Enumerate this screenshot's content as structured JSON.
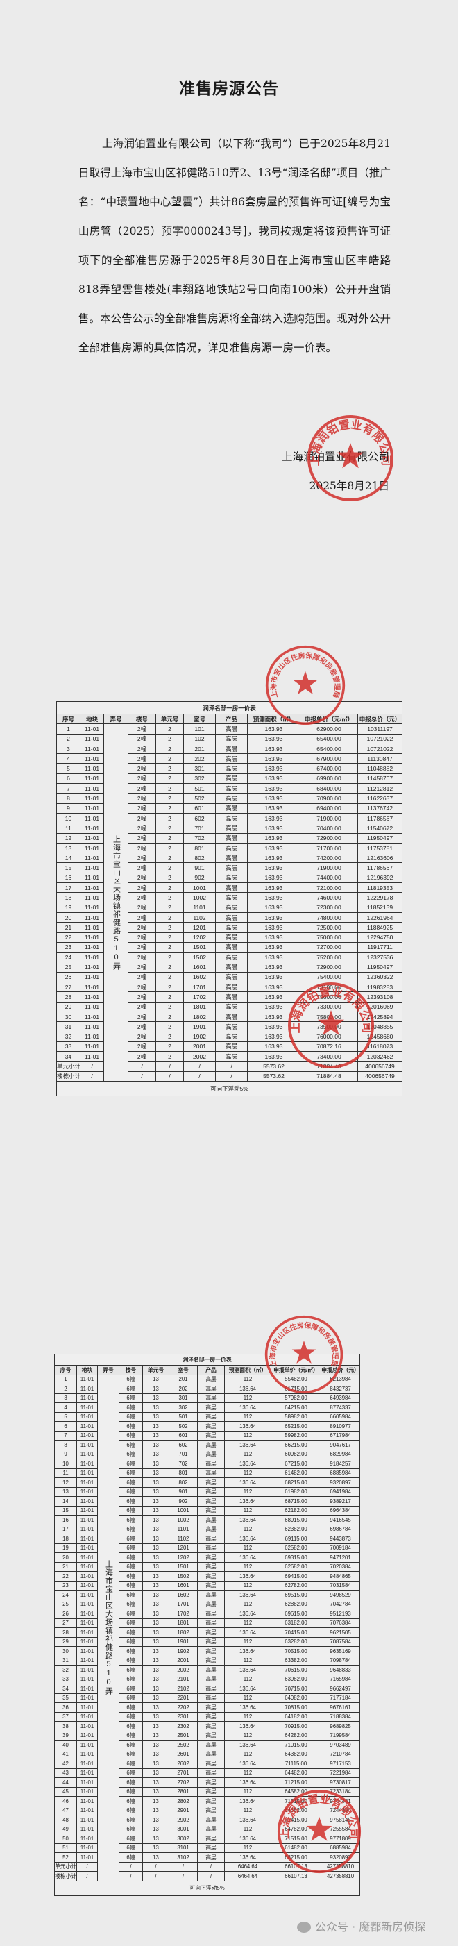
{
  "notice": {
    "title": "准售房源公告",
    "paragraph": "上海润铂置业有限公司（以下称“我司”）已于2025年8月21日取得上海市宝山区祁健路510弄2、13号“润泽名邸”项目（推广名：“中環置地中心望雲”）共计86套房屋的预售许可证[编号为宝山房管（2025）预字0000243号]，我司按规定将该预售许可证项下的全部准售房源于2025年8月30日在上海市宝山区丰皓路818弄望雲售楼处(丰翔路地铁站2号口向南100米）公开开盘销售。本公告公示的全部准售房源将全部纳入选购范围。现对外公开全部准售房源的具体情况，详见准售房源一房一价表。",
    "signature_company": "上海润铂置业有限公司",
    "signature_date": "2025年8月21日"
  },
  "stamps": {
    "company_seal": "上海润铂置业有限公司",
    "authority_seal": "上海市宝山区住房保障和房屋管理局",
    "color": "#d2302c"
  },
  "table_headers": [
    "序号",
    "地块",
    "弄号",
    "楼号",
    "单元号",
    "室号",
    "产品",
    "预测面积（㎡）",
    "申报单价（元/㎡）",
    "申报总价（元）"
  ],
  "lane_text": "上海市宝山区大场镇祁健路510弄",
  "tables": [
    {
      "title": "润泽名邸一房一价表",
      "rows": [
        [
          "1",
          "11-01",
          "2幢",
          "2",
          "101",
          "高层",
          "163.93",
          "62900.00",
          "10311197"
        ],
        [
          "2",
          "11-01",
          "2幢",
          "2",
          "102",
          "高层",
          "163.93",
          "65400.00",
          "10721022"
        ],
        [
          "3",
          "11-01",
          "2幢",
          "2",
          "201",
          "高层",
          "163.93",
          "65400.00",
          "10721022"
        ],
        [
          "4",
          "11-01",
          "2幢",
          "2",
          "202",
          "高层",
          "163.93",
          "67900.00",
          "11130847"
        ],
        [
          "5",
          "11-01",
          "2幢",
          "2",
          "301",
          "高层",
          "163.93",
          "67400.00",
          "11048882"
        ],
        [
          "6",
          "11-01",
          "2幢",
          "2",
          "302",
          "高层",
          "163.93",
          "69900.00",
          "11458707"
        ],
        [
          "7",
          "11-01",
          "2幢",
          "2",
          "501",
          "高层",
          "163.93",
          "68400.00",
          "11212812"
        ],
        [
          "8",
          "11-01",
          "2幢",
          "2",
          "502",
          "高层",
          "163.93",
          "70900.00",
          "11622637"
        ],
        [
          "9",
          "11-01",
          "2幢",
          "2",
          "601",
          "高层",
          "163.93",
          "69400.00",
          "11376742"
        ],
        [
          "10",
          "11-01",
          "2幢",
          "2",
          "602",
          "高层",
          "163.93",
          "71900.00",
          "11786567"
        ],
        [
          "11",
          "11-01",
          "2幢",
          "2",
          "701",
          "高层",
          "163.93",
          "70400.00",
          "11540672"
        ],
        [
          "12",
          "11-01",
          "2幢",
          "2",
          "702",
          "高层",
          "163.93",
          "72900.00",
          "11950497"
        ],
        [
          "13",
          "11-01",
          "2幢",
          "2",
          "801",
          "高层",
          "163.93",
          "71700.00",
          "11753781"
        ],
        [
          "14",
          "11-01",
          "2幢",
          "2",
          "802",
          "高层",
          "163.93",
          "74200.00",
          "12163606"
        ],
        [
          "15",
          "11-01",
          "2幢",
          "2",
          "901",
          "高层",
          "163.93",
          "71900.00",
          "11786567"
        ],
        [
          "16",
          "11-01",
          "2幢",
          "2",
          "902",
          "高层",
          "163.93",
          "74400.00",
          "12196392"
        ],
        [
          "17",
          "11-01",
          "2幢",
          "2",
          "1001",
          "高层",
          "163.93",
          "72100.00",
          "11819353"
        ],
        [
          "18",
          "11-01",
          "2幢",
          "2",
          "1002",
          "高层",
          "163.93",
          "74600.00",
          "12229178"
        ],
        [
          "19",
          "11-01",
          "2幢",
          "2",
          "1101",
          "高层",
          "163.93",
          "72300.00",
          "11852139"
        ],
        [
          "20",
          "11-01",
          "2幢",
          "2",
          "1102",
          "高层",
          "163.93",
          "74800.00",
          "12261964"
        ],
        [
          "21",
          "11-01",
          "2幢",
          "2",
          "1201",
          "高层",
          "163.93",
          "72500.00",
          "11884925"
        ],
        [
          "22",
          "11-01",
          "2幢",
          "2",
          "1202",
          "高层",
          "163.93",
          "75000.00",
          "12294750"
        ],
        [
          "23",
          "11-01",
          "2幢",
          "2",
          "1501",
          "高层",
          "163.93",
          "72700.00",
          "11917711"
        ],
        [
          "24",
          "11-01",
          "2幢",
          "2",
          "1502",
          "高层",
          "163.93",
          "75200.00",
          "12327536"
        ],
        [
          "25",
          "11-01",
          "2幢",
          "2",
          "1601",
          "高层",
          "163.93",
          "72900.00",
          "11950497"
        ],
        [
          "26",
          "11-01",
          "2幢",
          "2",
          "1602",
          "高层",
          "163.93",
          "75400.00",
          "12360322"
        ],
        [
          "27",
          "11-01",
          "2幢",
          "2",
          "1701",
          "高层",
          "163.93",
          "73100.00",
          "11983283"
        ],
        [
          "28",
          "11-01",
          "2幢",
          "2",
          "1702",
          "高层",
          "163.93",
          "75600.00",
          "12393108"
        ],
        [
          "29",
          "11-01",
          "2幢",
          "2",
          "1801",
          "高层",
          "163.93",
          "73300.00",
          "12016069"
        ],
        [
          "30",
          "11-01",
          "2幢",
          "2",
          "1802",
          "高层",
          "163.93",
          "75800.00",
          "12425894"
        ],
        [
          "31",
          "11-01",
          "2幢",
          "2",
          "1901",
          "高层",
          "163.93",
          "73500.00",
          "12048855"
        ],
        [
          "32",
          "11-01",
          "2幢",
          "2",
          "1902",
          "高层",
          "163.93",
          "76000.00",
          "12458680"
        ],
        [
          "33",
          "11-01",
          "2幢",
          "2",
          "2001",
          "高层",
          "163.93",
          "70872.16",
          "11618073"
        ],
        [
          "34",
          "11-01",
          "2幢",
          "2",
          "2002",
          "高层",
          "163.93",
          "73400.00",
          "12032462"
        ]
      ],
      "subtotals": [
        [
          "单元小计",
          "/",
          "/",
          "/",
          "/",
          "/",
          "5573.62",
          "71884.48",
          "400656749"
        ],
        [
          "楼栋小计",
          "/",
          "/",
          "/",
          "/",
          "/",
          "5573.62",
          "71884.48",
          "400656749"
        ]
      ],
      "footer": "可向下浮动5%"
    },
    {
      "title": "润泽名邸一房一价表",
      "rows": [
        [
          "1",
          "11-01",
          "6幢",
          "13",
          "201",
          "高层",
          "112",
          "55482.00",
          "6213984"
        ],
        [
          "2",
          "11-01",
          "6幢",
          "13",
          "202",
          "高层",
          "136.64",
          "61715.00",
          "8432737"
        ],
        [
          "3",
          "11-01",
          "6幢",
          "13",
          "301",
          "高层",
          "112",
          "57982.00",
          "6493984"
        ],
        [
          "4",
          "11-01",
          "6幢",
          "13",
          "302",
          "高层",
          "136.64",
          "64215.00",
          "8774337"
        ],
        [
          "5",
          "11-01",
          "6幢",
          "13",
          "501",
          "高层",
          "112",
          "58982.00",
          "6605984"
        ],
        [
          "6",
          "11-01",
          "6幢",
          "13",
          "502",
          "高层",
          "136.64",
          "65215.00",
          "8910977"
        ],
        [
          "7",
          "11-01",
          "6幢",
          "13",
          "601",
          "高层",
          "112",
          "59982.00",
          "6717984"
        ],
        [
          "8",
          "11-01",
          "6幢",
          "13",
          "602",
          "高层",
          "136.64",
          "66215.00",
          "9047617"
        ],
        [
          "9",
          "11-01",
          "6幢",
          "13",
          "701",
          "高层",
          "112",
          "60982.00",
          "6829984"
        ],
        [
          "10",
          "11-01",
          "6幢",
          "13",
          "702",
          "高层",
          "136.64",
          "67215.00",
          "9184257"
        ],
        [
          "11",
          "11-01",
          "6幢",
          "13",
          "801",
          "高层",
          "112",
          "61482.00",
          "6885984"
        ],
        [
          "12",
          "11-01",
          "6幢",
          "13",
          "802",
          "高层",
          "136.64",
          "68215.00",
          "9320897"
        ],
        [
          "13",
          "11-01",
          "6幢",
          "13",
          "901",
          "高层",
          "112",
          "61982.00",
          "6941984"
        ],
        [
          "14",
          "11-01",
          "6幢",
          "13",
          "902",
          "高层",
          "136.64",
          "68715.00",
          "9389217"
        ],
        [
          "15",
          "11-01",
          "6幢",
          "13",
          "1001",
          "高层",
          "112",
          "62182.00",
          "6964384"
        ],
        [
          "16",
          "11-01",
          "6幢",
          "13",
          "1002",
          "高层",
          "136.64",
          "68915.00",
          "9416545"
        ],
        [
          "17",
          "11-01",
          "6幢",
          "13",
          "1101",
          "高层",
          "112",
          "62382.00",
          "6986784"
        ],
        [
          "18",
          "11-01",
          "6幢",
          "13",
          "1102",
          "高层",
          "136.64",
          "69115.00",
          "9443873"
        ],
        [
          "19",
          "11-01",
          "6幢",
          "13",
          "1201",
          "高层",
          "112",
          "62582.00",
          "7009184"
        ],
        [
          "20",
          "11-01",
          "6幢",
          "13",
          "1202",
          "高层",
          "136.64",
          "69315.00",
          "9471201"
        ],
        [
          "21",
          "11-01",
          "6幢",
          "13",
          "1501",
          "高层",
          "112",
          "62682.00",
          "7020384"
        ],
        [
          "22",
          "11-01",
          "6幢",
          "13",
          "1502",
          "高层",
          "136.64",
          "69415.00",
          "9484865"
        ],
        [
          "23",
          "11-01",
          "6幢",
          "13",
          "1601",
          "高层",
          "112",
          "62782.00",
          "7031584"
        ],
        [
          "24",
          "11-01",
          "6幢",
          "13",
          "1602",
          "高层",
          "136.64",
          "69515.00",
          "9498529"
        ],
        [
          "25",
          "11-01",
          "6幢",
          "13",
          "1701",
          "高层",
          "112",
          "62882.00",
          "7042784"
        ],
        [
          "26",
          "11-01",
          "6幢",
          "13",
          "1702",
          "高层",
          "136.64",
          "69615.00",
          "9512193"
        ],
        [
          "27",
          "11-01",
          "6幢",
          "13",
          "1801",
          "高层",
          "112",
          "63182.00",
          "7076384"
        ],
        [
          "28",
          "11-01",
          "6幢",
          "13",
          "1802",
          "高层",
          "136.64",
          "70415.00",
          "9621505"
        ],
        [
          "29",
          "11-01",
          "6幢",
          "13",
          "1901",
          "高层",
          "112",
          "63282.00",
          "7087584"
        ],
        [
          "30",
          "11-01",
          "6幢",
          "13",
          "1902",
          "高层",
          "136.64",
          "70515.00",
          "9635169"
        ],
        [
          "31",
          "11-01",
          "6幢",
          "13",
          "2001",
          "高层",
          "112",
          "63382.00",
          "7098784"
        ],
        [
          "32",
          "11-01",
          "6幢",
          "13",
          "2002",
          "高层",
          "136.64",
          "70615.00",
          "9648833"
        ],
        [
          "33",
          "11-01",
          "6幢",
          "13",
          "2101",
          "高层",
          "112",
          "63982.00",
          "7165984"
        ],
        [
          "34",
          "11-01",
          "6幢",
          "13",
          "2102",
          "高层",
          "136.64",
          "70715.00",
          "9662497"
        ],
        [
          "35",
          "11-01",
          "6幢",
          "13",
          "2201",
          "高层",
          "112",
          "64082.00",
          "7177184"
        ],
        [
          "36",
          "11-01",
          "6幢",
          "13",
          "2202",
          "高层",
          "136.64",
          "70815.00",
          "9676161"
        ],
        [
          "37",
          "11-01",
          "6幢",
          "13",
          "2301",
          "高层",
          "112",
          "64182.00",
          "7188384"
        ],
        [
          "38",
          "11-01",
          "6幢",
          "13",
          "2302",
          "高层",
          "136.64",
          "70915.00",
          "9689825"
        ],
        [
          "39",
          "11-01",
          "6幢",
          "13",
          "2501",
          "高层",
          "112",
          "64282.00",
          "7199584"
        ],
        [
          "40",
          "11-01",
          "6幢",
          "13",
          "2502",
          "高层",
          "136.64",
          "71015.00",
          "9703489"
        ],
        [
          "41",
          "11-01",
          "6幢",
          "13",
          "2601",
          "高层",
          "112",
          "64382.00",
          "7210784"
        ],
        [
          "42",
          "11-01",
          "6幢",
          "13",
          "2602",
          "高层",
          "136.64",
          "71115.00",
          "9717153"
        ],
        [
          "43",
          "11-01",
          "6幢",
          "13",
          "2701",
          "高层",
          "112",
          "64482.00",
          "7221984"
        ],
        [
          "44",
          "11-01",
          "6幢",
          "13",
          "2702",
          "高层",
          "136.64",
          "71215.00",
          "9730817"
        ],
        [
          "45",
          "11-01",
          "6幢",
          "13",
          "2801",
          "高层",
          "112",
          "64582.00",
          "7233184"
        ],
        [
          "46",
          "11-01",
          "6幢",
          "13",
          "2802",
          "高层",
          "136.64",
          "71315.00",
          "9744481"
        ],
        [
          "47",
          "11-01",
          "6幢",
          "13",
          "2901",
          "高层",
          "112",
          "64682.00",
          "7244384"
        ],
        [
          "48",
          "11-01",
          "6幢",
          "13",
          "2902",
          "高层",
          "136.64",
          "71415.00",
          "9758145"
        ],
        [
          "49",
          "11-01",
          "6幢",
          "13",
          "3001",
          "高层",
          "112",
          "64782.00",
          "7255584"
        ],
        [
          "50",
          "11-01",
          "6幢",
          "13",
          "3002",
          "高层",
          "136.64",
          "71515.00",
          "9771809"
        ],
        [
          "51",
          "11-01",
          "6幢",
          "13",
          "3101",
          "高层",
          "112",
          "61482.00",
          "6885984"
        ],
        [
          "52",
          "11-01",
          "6幢",
          "13",
          "3102",
          "高层",
          "136.64",
          "68215.00",
          "9320897"
        ]
      ],
      "subtotals": [
        [
          "单元小计",
          "/",
          "/",
          "/",
          "/",
          "/",
          "6464.64",
          "66107.13",
          "427358810"
        ],
        [
          "楼栋小计",
          "/",
          "/",
          "/",
          "/",
          "/",
          "6464.64",
          "66107.13",
          "427358810"
        ]
      ],
      "footer": "可向下浮动5%"
    }
  ],
  "watermark": {
    "icon": "wechat-icon",
    "text": "公众号 · 魔都新房侦探"
  }
}
